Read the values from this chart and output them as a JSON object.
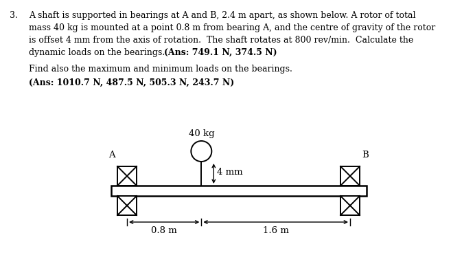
{
  "bg_color": "#ffffff",
  "text_color": "#000000",
  "label_A": "A",
  "label_B": "B",
  "label_mass": "40 kg",
  "label_offset": "4 mm",
  "label_dist1": "0.8 m",
  "label_dist2": "1.6 m",
  "text_lines": [
    "A shaft is supported in bearings at A and B, 2.4 m apart, as shown below. A rotor of total",
    "mass 40 kg is mounted at a point 0.8 m from bearing A, and the centre of gravity of the rotor",
    "is offset 4 mm from the axis of rotation.  The shaft rotates at 800 rev/min.  Calculate the",
    "dynamic loads on the bearings."
  ],
  "ans1": "(Ans: 749.1 N, 374.5 N)",
  "sub_line": "Find also the maximum and minimum loads on the bearings.",
  "ans2": "(Ans: 1010.7 N, 487.5 N, 505.3 N, 243.7 N)",
  "fontsize_body": 9.0,
  "fontsize_bold": 9.0
}
